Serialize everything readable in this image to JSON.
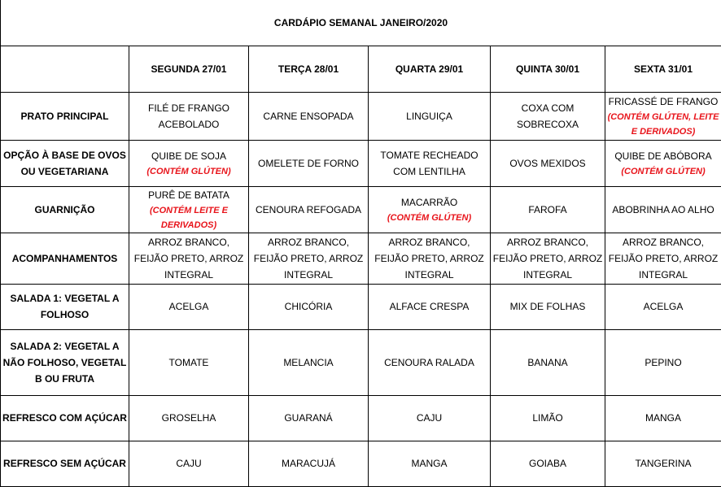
{
  "title": "CARDÁPIO SEMANAL JANEIRO/2020",
  "days": [
    "SEGUNDA 27/01",
    "TERÇA 28/01",
    "QUARTA 29/01",
    "QUINTA 30/01",
    "SEXTA 31/01"
  ],
  "note_color": "#e8141b",
  "rows": [
    {
      "label": "PRATO PRINCIPAL",
      "cells": [
        {
          "main": "FILÉ DE FRANGO ACEBOLADO",
          "note": ""
        },
        {
          "main": "CARNE ENSOPADA",
          "note": ""
        },
        {
          "main": "LINGUIÇA",
          "note": ""
        },
        {
          "main": "COXA COM SOBRECOXA",
          "note": ""
        },
        {
          "main": "FRICASSÉ DE FRANGO",
          "note": "(CONTÉM GLÚTEN, LEITE E DERIVADOS)"
        }
      ]
    },
    {
      "label": "OPÇÃO À BASE DE OVOS OU VEGETARIANA",
      "cells": [
        {
          "main": "QUIBE DE  SOJA",
          "note": "(CONTÉM GLÚTEN)"
        },
        {
          "main": "OMELETE DE FORNO",
          "note": ""
        },
        {
          "main": "TOMATE RECHEADO COM LENTILHA",
          "note": ""
        },
        {
          "main": "OVOS MEXIDOS",
          "note": ""
        },
        {
          "main": "QUIBE DE ABÓBORA",
          "note": "(CONTÉM GLÚTEN)"
        }
      ]
    },
    {
      "label": "GUARNIÇÃO",
      "cells": [
        {
          "main": "PURÊ DE BATATA",
          "note": "(CONTÉM LEITE E DERIVADOS)"
        },
        {
          "main": "CENOURA REFOGADA",
          "note": ""
        },
        {
          "main": "MACARRÃO",
          "note": "(CONTÉM GLÚTEN)"
        },
        {
          "main": "FAROFA",
          "note": ""
        },
        {
          "main": "ABOBRINHA AO ALHO",
          "note": ""
        }
      ]
    },
    {
      "label": "ACOMPANHAMENTOS",
      "cells": [
        {
          "main": "ARROZ BRANCO, FEIJÃO PRETO, ARROZ INTEGRAL",
          "note": ""
        },
        {
          "main": "ARROZ BRANCO, FEIJÃO PRETO, ARROZ INTEGRAL",
          "note": ""
        },
        {
          "main": "ARROZ BRANCO, FEIJÃO PRETO, ARROZ INTEGRAL",
          "note": ""
        },
        {
          "main": "ARROZ BRANCO, FEIJÃO PRETO, ARROZ INTEGRAL",
          "note": ""
        },
        {
          "main": "ARROZ BRANCO, FEIJÃO PRETO, ARROZ INTEGRAL",
          "note": ""
        }
      ]
    },
    {
      "label": "SALADA 1: VEGETAL A FOLHOSO",
      "cells": [
        {
          "main": "ACELGA",
          "note": ""
        },
        {
          "main": "CHICÓRIA",
          "note": ""
        },
        {
          "main": "ALFACE CRESPA",
          "note": ""
        },
        {
          "main": "MIX DE FOLHAS",
          "note": ""
        },
        {
          "main": "ACELGA",
          "note": ""
        }
      ]
    },
    {
      "label": "SALADA 2: VEGETAL A NÃO FOLHOSO, VEGETAL B OU FRUTA",
      "cells": [
        {
          "main": "TOMATE",
          "note": ""
        },
        {
          "main": "MELANCIA",
          "note": ""
        },
        {
          "main": "CENOURA RALADA",
          "note": ""
        },
        {
          "main": "BANANA",
          "note": ""
        },
        {
          "main": "PEPINO",
          "note": ""
        }
      ]
    },
    {
      "label": "REFRESCO COM AÇÚCAR",
      "cells": [
        {
          "main": "GROSELHA",
          "note": ""
        },
        {
          "main": "GUARANÁ",
          "note": ""
        },
        {
          "main": "CAJU",
          "note": ""
        },
        {
          "main": "LIMÃO",
          "note": ""
        },
        {
          "main": "MANGA",
          "note": ""
        }
      ]
    },
    {
      "label": "REFRESCO SEM AÇÚCAR",
      "cells": [
        {
          "main": "CAJU",
          "note": ""
        },
        {
          "main": "MARACUJÁ",
          "note": ""
        },
        {
          "main": "MANGA",
          "note": ""
        },
        {
          "main": "GOIABA",
          "note": ""
        },
        {
          "main": "TANGERINA",
          "note": ""
        }
      ]
    }
  ]
}
